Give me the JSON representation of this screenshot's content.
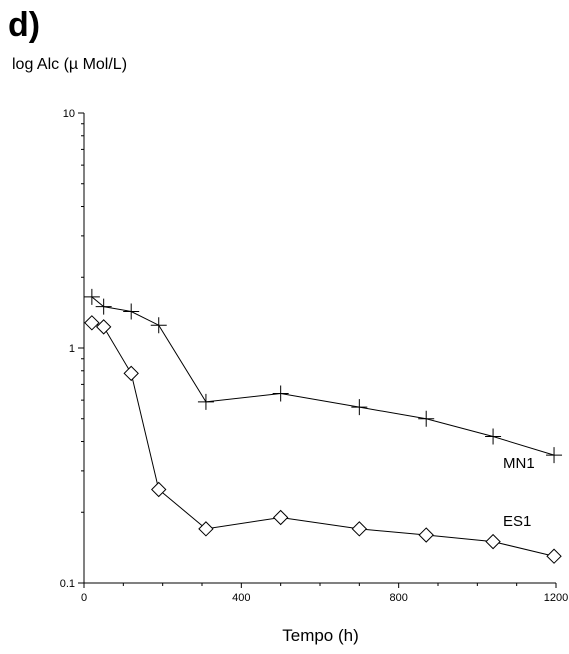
{
  "panel_label": "d)",
  "chart_data": {
    "type": "line",
    "title": "",
    "xlabel": "Tempo (h)",
    "ylabel": "log Alc (µ Mol/L)",
    "xlim": [
      0,
      1200
    ],
    "ylim": [
      0.1,
      10
    ],
    "yscale": "log",
    "grid": false,
    "x_ticks": [
      0,
      400,
      800,
      1200
    ],
    "x_tick_labels": [
      "0",
      "400",
      "800",
      "1200"
    ],
    "y_ticks": [
      0.1,
      1,
      10
    ],
    "y_tick_labels": [
      "0.1",
      "1",
      "10"
    ],
    "series": [
      {
        "name": "MN1",
        "marker": "plus",
        "color": "#000000",
        "x": [
          20,
          50,
          120,
          190,
          310,
          500,
          700,
          870,
          1040,
          1195
        ],
        "y": [
          1.65,
          1.5,
          1.43,
          1.25,
          0.59,
          0.64,
          0.56,
          0.5,
          0.42,
          0.35
        ]
      },
      {
        "name": "ES1",
        "marker": "diamond",
        "color": "#000000",
        "x": [
          20,
          50,
          120,
          190,
          310,
          500,
          700,
          870,
          1040,
          1195
        ],
        "y": [
          1.28,
          1.23,
          0.78,
          0.25,
          0.17,
          0.19,
          0.17,
          0.16,
          0.15,
          0.13
        ]
      }
    ]
  }
}
